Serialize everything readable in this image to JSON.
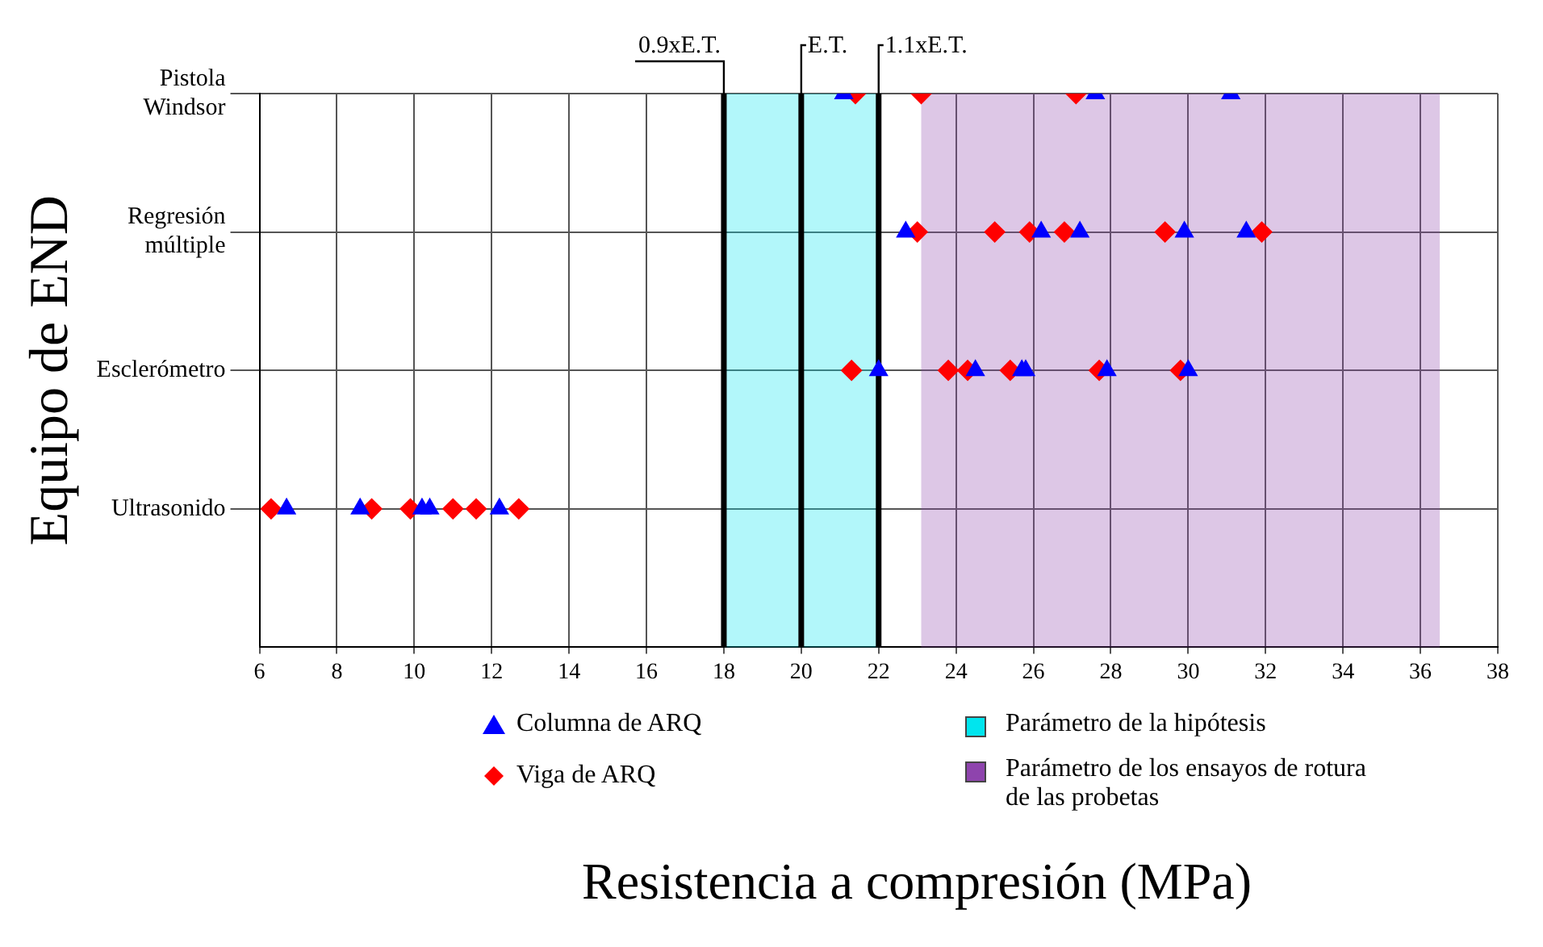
{
  "chart_data": {
    "type": "scatter",
    "orientation": "horizontal",
    "xlabel": "Resistencia a compresión (MPa)",
    "ylabel": "Equipo de END",
    "categories": [
      "Pistola Windsor",
      "Regresión múltiple",
      "Esclerómetro",
      "Ultrasonido"
    ],
    "series": [
      {
        "name": "Columna de ARQ",
        "color": "#0000ff",
        "marker": "triangle",
        "x": [
          "Pistola Windsor",
          "Pistola Windsor",
          "Pistola Windsor",
          "Regresión múltiple",
          "Regresión múltiple",
          "Regresión múltiple",
          "Regresión múltiple",
          "Regresión múltiple",
          "Esclerómetro",
          "Esclerómetro",
          "Esclerómetro",
          "Esclerómetro",
          "Esclerómetro",
          "Esclerómetro",
          "Ultrasonido",
          "Ultrasonido",
          "Ultrasonido",
          "Ultrasonido",
          "Ultrasonido"
        ],
        "values": [
          21.1,
          27.6,
          31.1,
          22.7,
          26.2,
          27.2,
          29.9,
          31.5,
          22.0,
          24.5,
          25.7,
          25.8,
          27.9,
          30.0,
          6.7,
          8.6,
          10.2,
          10.4,
          12.2
        ]
      },
      {
        "name": "Viga de ARQ",
        "color": "#ff0000",
        "marker": "diamond",
        "x": [
          "Pistola Windsor",
          "Pistola Windsor",
          "Pistola Windsor",
          "Regresión múltiple",
          "Regresión múltiple",
          "Regresión múltiple",
          "Regresión múltiple",
          "Regresión múltiple",
          "Regresión múltiple",
          "Esclerómetro",
          "Esclerómetro",
          "Esclerómetro",
          "Esclerómetro",
          "Esclerómetro",
          "Esclerómetro",
          "Ultrasonido",
          "Ultrasonido",
          "Ultrasonido",
          "Ultrasonido",
          "Ultrasonido",
          "Ultrasonido"
        ],
        "values": [
          21.4,
          23.1,
          27.1,
          23.0,
          25.0,
          25.9,
          26.8,
          29.4,
          31.9,
          21.3,
          23.8,
          24.3,
          25.4,
          27.7,
          29.8,
          6.3,
          8.9,
          9.9,
          11.0,
          11.6,
          12.7
        ]
      }
    ],
    "xlim": [
      6,
      38
    ],
    "xticks": [
      6,
      8,
      10,
      12,
      14,
      16,
      18,
      20,
      22,
      24,
      26,
      28,
      30,
      32,
      34,
      36,
      38
    ],
    "ref_lines": [
      {
        "axis": "x",
        "value": 18,
        "label": "0.9xE.T.",
        "color": "#000000"
      },
      {
        "axis": "x",
        "value": 20,
        "label": "E.T.",
        "color": "#000000"
      },
      {
        "axis": "x",
        "value": 22,
        "label": "1.1xE.T.",
        "color": "#000000"
      }
    ],
    "bands": [
      {
        "axis": "x",
        "from": 18,
        "to": 22,
        "label": "Parámetro de la hipótesis",
        "color": "#00e5ee"
      },
      {
        "axis": "x",
        "from": 23.1,
        "to": 36.5,
        "label": "Parámetro de los ensayos de rotura de las probetas",
        "color": "#8e44ad"
      }
    ],
    "grid": true,
    "legend": "bottom"
  }
}
